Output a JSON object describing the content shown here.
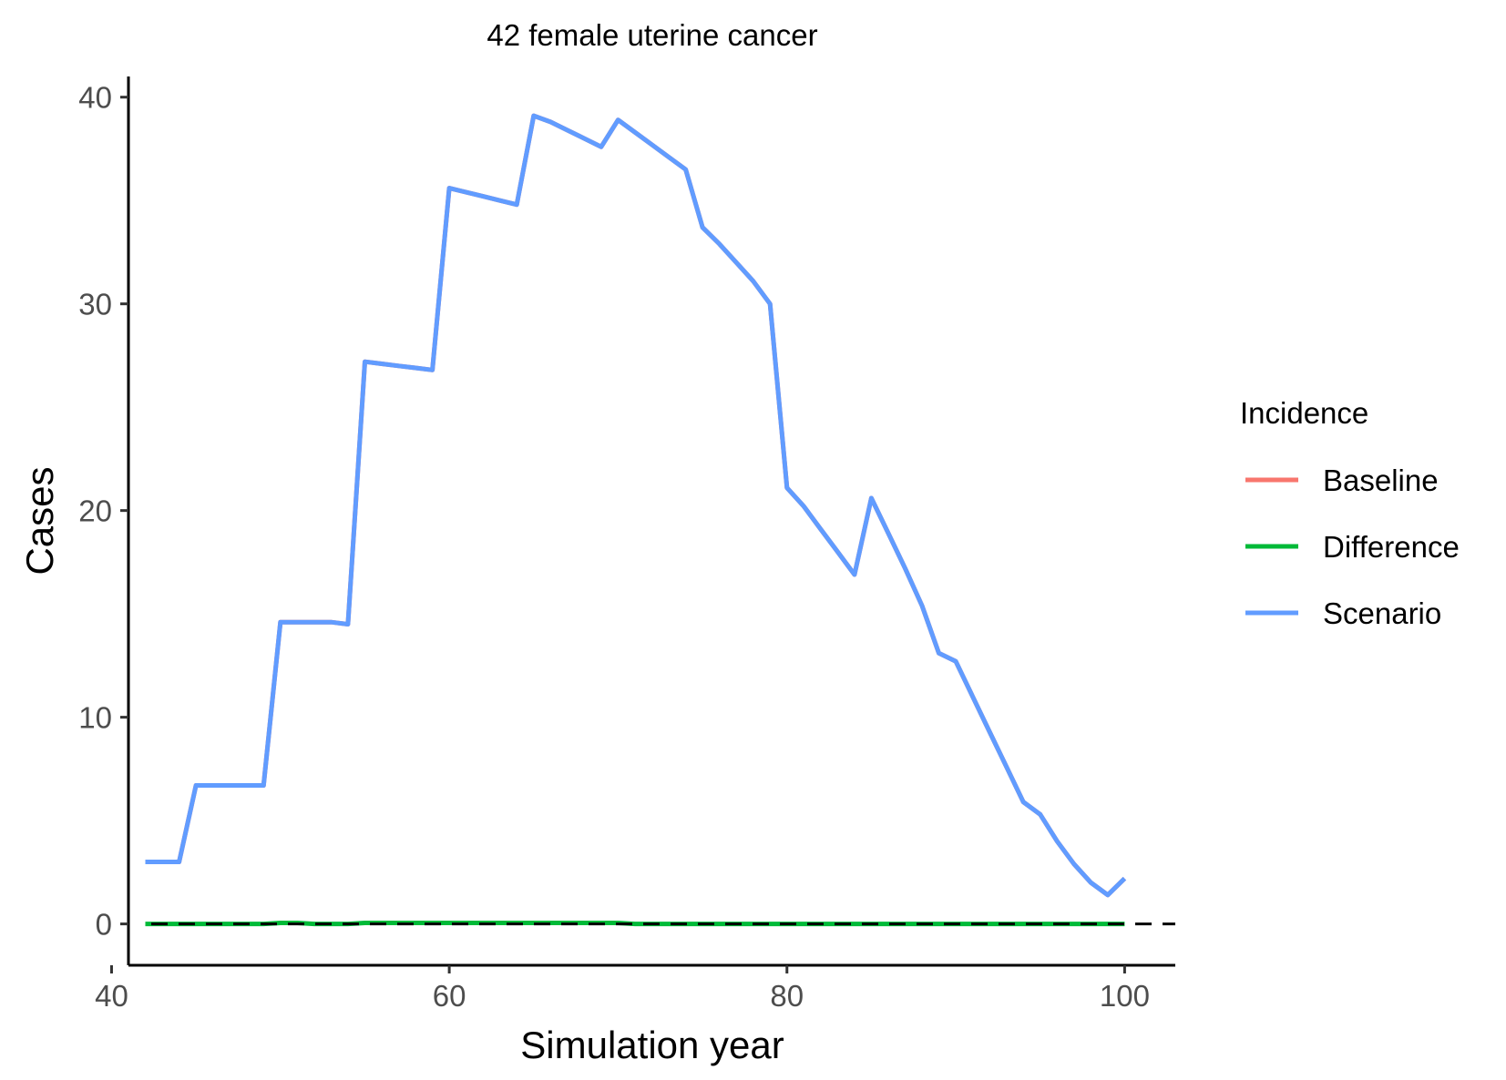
{
  "chart_data": {
    "type": "line",
    "title": "42 female uterine cancer",
    "xlabel": "Simulation year",
    "ylabel": "Cases",
    "xlim": [
      41,
      103
    ],
    "ylim": [
      -2,
      41
    ],
    "xticks": [
      40,
      60,
      80,
      100
    ],
    "yticks": [
      0,
      10,
      20,
      30,
      40
    ],
    "grid": false,
    "reference_line": {
      "y": 0,
      "style": "dashed",
      "color": "#000000"
    },
    "legend": {
      "title": "Incidence",
      "position": "right"
    },
    "x": [
      42,
      43,
      44,
      45,
      46,
      47,
      48,
      49,
      50,
      51,
      52,
      53,
      54,
      55,
      56,
      57,
      58,
      59,
      60,
      61,
      62,
      63,
      64,
      65,
      66,
      67,
      68,
      69,
      70,
      71,
      72,
      73,
      74,
      75,
      76,
      77,
      78,
      79,
      80,
      81,
      82,
      83,
      84,
      85,
      86,
      87,
      88,
      89,
      90,
      91,
      92,
      93,
      94,
      95,
      96,
      97,
      98,
      99,
      100
    ],
    "series": [
      {
        "name": "Baseline",
        "color": "#F8766D",
        "values": [
          3.0,
          3.0,
          3.0,
          6.7,
          6.7,
          6.7,
          6.7,
          6.7,
          14.6,
          14.6,
          14.6,
          14.6,
          14.5,
          27.2,
          27.1,
          27.0,
          26.9,
          26.8,
          35.6,
          35.4,
          35.2,
          35.0,
          34.8,
          39.1,
          38.8,
          38.4,
          38.0,
          37.6,
          38.9,
          38.3,
          37.7,
          37.1,
          36.5,
          33.7,
          32.9,
          32.0,
          31.1,
          30.0,
          21.1,
          20.2,
          19.1,
          18.0,
          16.9,
          20.6,
          18.9,
          17.2,
          15.4,
          13.1,
          12.7,
          11.0,
          9.3,
          7.6,
          5.9,
          5.3,
          4.0,
          2.9,
          2.0,
          1.4,
          2.2
        ]
      },
      {
        "name": "Difference",
        "color": "#00BA38",
        "values": [
          0,
          0,
          0,
          0,
          0,
          0,
          0,
          0,
          0.05,
          0.05,
          0,
          0,
          0,
          0.05,
          0.05,
          0.05,
          0.05,
          0.05,
          0.05,
          0.05,
          0.05,
          0.05,
          0.05,
          0.05,
          0.05,
          0.05,
          0.05,
          0.05,
          0.05,
          0,
          0,
          0,
          0,
          0,
          0,
          0,
          0,
          0,
          0,
          0,
          0,
          0,
          0,
          0,
          0,
          0,
          0,
          0,
          0,
          0,
          0,
          0,
          0,
          0,
          0,
          0,
          0,
          0,
          0
        ]
      },
      {
        "name": "Scenario",
        "color": "#619CFF",
        "values": [
          3.0,
          3.0,
          3.0,
          6.7,
          6.7,
          6.7,
          6.7,
          6.7,
          14.6,
          14.6,
          14.6,
          14.6,
          14.5,
          27.2,
          27.1,
          27.0,
          26.9,
          26.8,
          35.6,
          35.4,
          35.2,
          35.0,
          34.8,
          39.1,
          38.8,
          38.4,
          38.0,
          37.6,
          38.9,
          38.3,
          37.7,
          37.1,
          36.5,
          33.7,
          32.9,
          32.0,
          31.1,
          30.0,
          21.1,
          20.2,
          19.1,
          18.0,
          16.9,
          20.6,
          18.9,
          17.2,
          15.4,
          13.1,
          12.7,
          11.0,
          9.3,
          7.6,
          5.9,
          5.3,
          4.0,
          2.9,
          2.0,
          1.4,
          2.2
        ]
      }
    ]
  }
}
